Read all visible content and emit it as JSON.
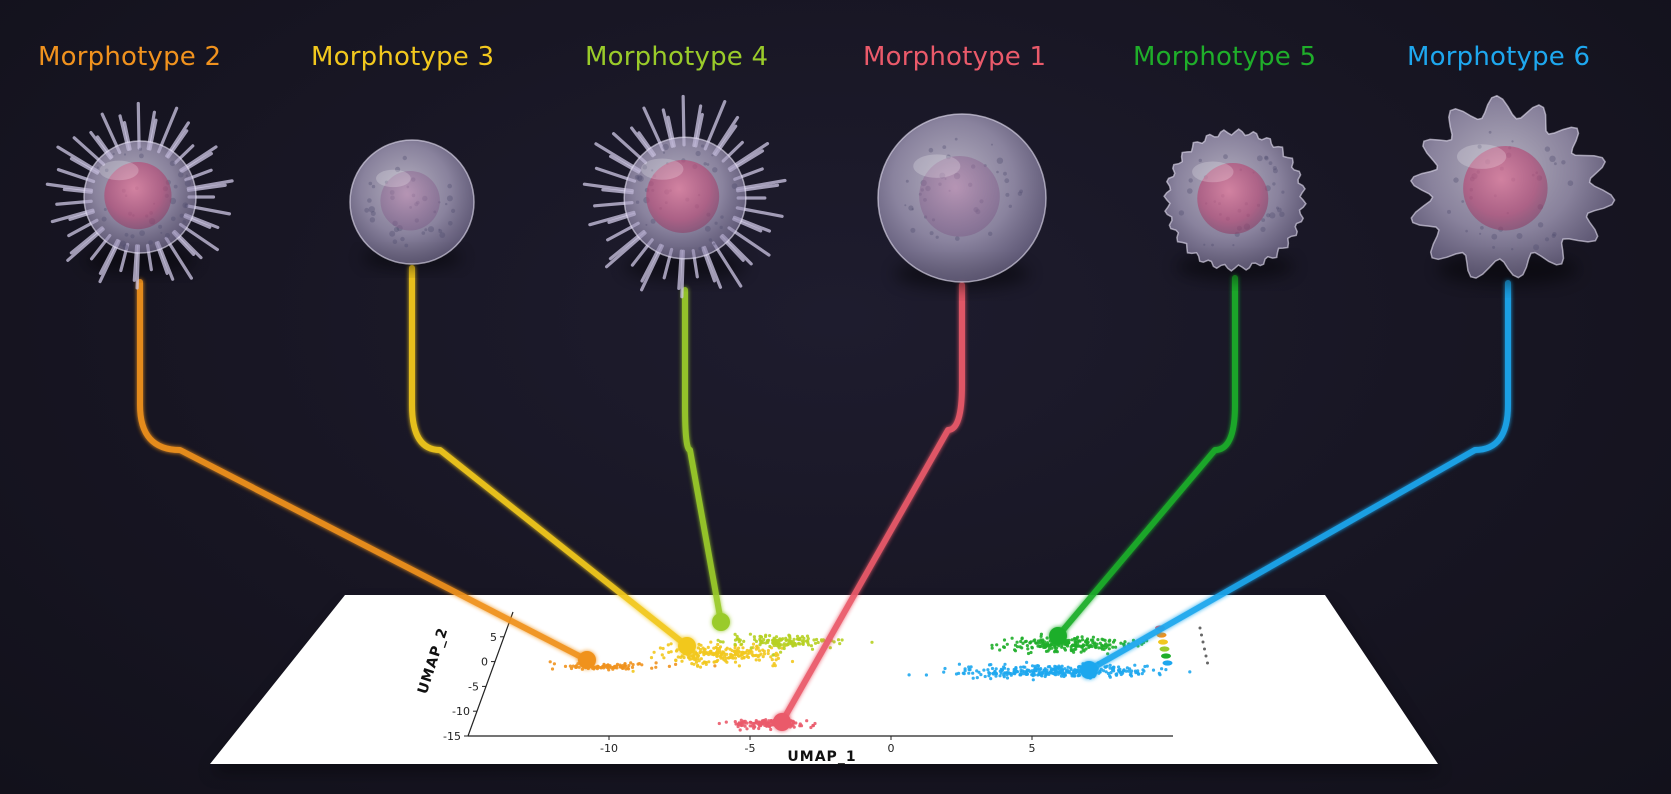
{
  "morphotypes": [
    {
      "label": "Morphotype 2",
      "color": "#f0921e",
      "cell_style": "spiky",
      "cluster": "orange"
    },
    {
      "label": "Morphotype 3",
      "color": "#f2c81e",
      "cell_style": "smooth",
      "cluster": "yellow"
    },
    {
      "label": "Morphotype 4",
      "color": "#9acb2a",
      "cell_style": "spiky",
      "cluster": "yellow-green"
    },
    {
      "label": "Morphotype 1",
      "color": "#ea5a6a",
      "cell_style": "smooth-large",
      "cluster": "red"
    },
    {
      "label": "Morphotype 5",
      "color": "#1fae2a",
      "cell_style": "bumpy",
      "cluster": "green"
    },
    {
      "label": "Morphotype 6",
      "color": "#1ea7ee",
      "cell_style": "ruffled",
      "cluster": "blue"
    }
  ],
  "umap_plot": {
    "xlabel": "UMAP_1",
    "ylabel": "UMAP_2",
    "x_ticks": [
      "-10",
      "-5",
      "0",
      "5"
    ],
    "y_ticks": [
      "5",
      "0",
      "-5",
      "-10",
      "-15"
    ],
    "xlim": [
      -15,
      10
    ],
    "ylim": [
      -15,
      10
    ],
    "clusters": [
      {
        "name": "orange",
        "color": "#f0921e",
        "center": [
          -11,
          -1
        ],
        "spread": [
          1.8,
          0.6
        ],
        "n": 90
      },
      {
        "name": "yellow",
        "color": "#f2c81e",
        "center": [
          -7,
          1.5
        ],
        "spread": [
          2.0,
          1.8
        ],
        "n": 220
      },
      {
        "name": "yellow-green",
        "color": "#b6d022",
        "center": [
          -5,
          4
        ],
        "spread": [
          1.8,
          1.2
        ],
        "n": 140
      },
      {
        "name": "red",
        "color": "#ea5a6a",
        "center": [
          -4.5,
          -12.5
        ],
        "spread": [
          1.3,
          0.9
        ],
        "n": 130
      },
      {
        "name": "green",
        "color": "#1fae2a",
        "center": [
          5,
          3.5
        ],
        "spread": [
          1.9,
          1.3
        ],
        "n": 220
      },
      {
        "name": "blue",
        "color": "#1ea7ee",
        "center": [
          5,
          -2
        ],
        "spread": [
          3.2,
          1.1
        ],
        "n": 320
      }
    ],
    "legend_colors": [
      "#ea5a6a",
      "#f0921e",
      "#f2c81e",
      "#9acb2a",
      "#1fae2a",
      "#1ea7ee"
    ]
  }
}
